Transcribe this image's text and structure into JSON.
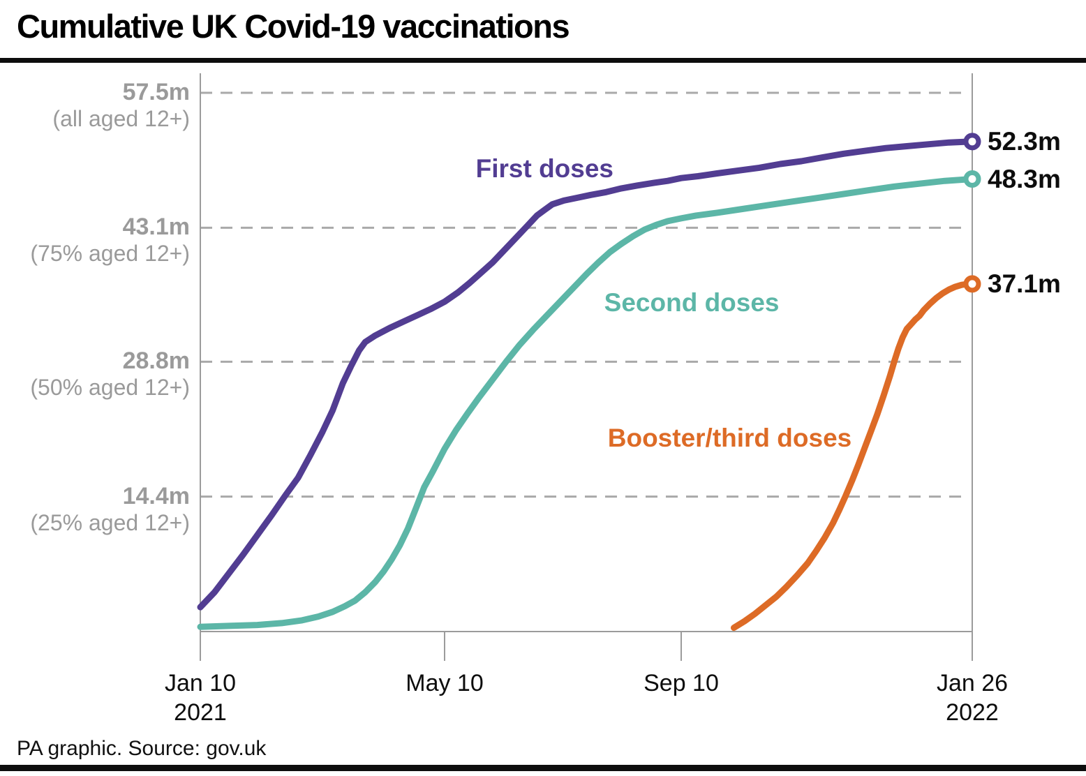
{
  "title": "Cumulative UK Covid-19 vaccinations",
  "footer": "PA graphic. Source: gov.uk",
  "chart_data": {
    "type": "line",
    "title": "Cumulative UK Covid-19 vaccinations",
    "x_unit": "days since 10 Jan 2021",
    "y_unit": "millions of doses",
    "ylim": [
      0,
      60
    ],
    "grid": "horizontal dashed gridlines at labelled y values",
    "legend_position": "labels beside each line",
    "x_ticks": [
      {
        "day": 0,
        "label": "Jan 10",
        "sublabel": "2021"
      },
      {
        "day": 120,
        "label": "May 10",
        "sublabel": ""
      },
      {
        "day": 243,
        "label": "Sep 10",
        "sublabel": ""
      },
      {
        "day": 381,
        "label": "Jan 26",
        "sublabel": "2022"
      }
    ],
    "y_ticks": [
      {
        "value": 57.5,
        "label": "57.5m",
        "sublabel": "(all aged 12+)"
      },
      {
        "value": 43.1,
        "label": "43.1m",
        "sublabel": "(75% aged 12+)"
      },
      {
        "value": 28.8,
        "label": "28.8m",
        "sublabel": "(50% aged 12+)"
      },
      {
        "value": 14.4,
        "label": "14.4m",
        "sublabel": "(25% aged 12+)"
      }
    ],
    "colors": {
      "first": "#523d92",
      "second": "#5cb6a7",
      "booster": "#dd6b26"
    },
    "series": [
      {
        "name": "First doses",
        "color": "#523d92",
        "end_label": "52.3m",
        "end_value": 52.3,
        "label_anchor": {
          "day": 172,
          "m": 49.2
        },
        "points": [
          [
            0,
            2.6
          ],
          [
            7,
            4.2
          ],
          [
            14,
            6.2
          ],
          [
            21,
            8.2
          ],
          [
            28,
            10.3
          ],
          [
            35,
            12.4
          ],
          [
            42,
            14.6
          ],
          [
            48,
            16.4
          ],
          [
            54,
            18.8
          ],
          [
            60,
            21.3
          ],
          [
            65,
            23.6
          ],
          [
            70,
            26.5
          ],
          [
            74,
            28.3
          ],
          [
            78,
            30.0
          ],
          [
            81,
            30.9
          ],
          [
            86,
            31.6
          ],
          [
            93,
            32.4
          ],
          [
            100,
            33.1
          ],
          [
            107,
            33.8
          ],
          [
            113,
            34.4
          ],
          [
            120,
            35.2
          ],
          [
            127,
            36.2
          ],
          [
            133,
            37.2
          ],
          [
            139,
            38.3
          ],
          [
            145,
            39.4
          ],
          [
            151,
            40.7
          ],
          [
            157,
            42.0
          ],
          [
            163,
            43.3
          ],
          [
            168,
            44.4
          ],
          [
            172,
            45.0
          ],
          [
            176,
            45.6
          ],
          [
            182,
            46.0
          ],
          [
            189,
            46.3
          ],
          [
            196,
            46.6
          ],
          [
            204,
            46.9
          ],
          [
            212,
            47.3
          ],
          [
            220,
            47.6
          ],
          [
            229,
            47.9
          ],
          [
            236,
            48.1
          ],
          [
            243,
            48.4
          ],
          [
            251,
            48.6
          ],
          [
            260,
            48.9
          ],
          [
            270,
            49.2
          ],
          [
            280,
            49.5
          ],
          [
            290,
            49.9
          ],
          [
            300,
            50.2
          ],
          [
            310,
            50.6
          ],
          [
            320,
            51.0
          ],
          [
            330,
            51.3
          ],
          [
            340,
            51.6
          ],
          [
            350,
            51.8
          ],
          [
            360,
            52.0
          ],
          [
            370,
            52.2
          ],
          [
            381,
            52.3
          ]
        ]
      },
      {
        "name": "Second doses",
        "color": "#5cb6a7",
        "end_label": "48.3m",
        "end_value": 48.3,
        "label_anchor": {
          "day": 248,
          "m": 34.9
        },
        "points": [
          [
            0,
            0.5
          ],
          [
            14,
            0.6
          ],
          [
            28,
            0.7
          ],
          [
            40,
            0.9
          ],
          [
            50,
            1.2
          ],
          [
            58,
            1.6
          ],
          [
            65,
            2.1
          ],
          [
            71,
            2.7
          ],
          [
            76,
            3.3
          ],
          [
            81,
            4.2
          ],
          [
            86,
            5.3
          ],
          [
            90,
            6.4
          ],
          [
            94,
            7.7
          ],
          [
            98,
            9.2
          ],
          [
            102,
            11.0
          ],
          [
            106,
            13.2
          ],
          [
            110,
            15.4
          ],
          [
            114,
            17.0
          ],
          [
            120,
            19.5
          ],
          [
            126,
            21.5
          ],
          [
            132,
            23.3
          ],
          [
            138,
            25.0
          ],
          [
            145,
            26.9
          ],
          [
            152,
            28.8
          ],
          [
            159,
            30.6
          ],
          [
            166,
            32.2
          ],
          [
            173,
            33.7
          ],
          [
            180,
            35.2
          ],
          [
            187,
            36.7
          ],
          [
            194,
            38.2
          ],
          [
            200,
            39.4
          ],
          [
            206,
            40.5
          ],
          [
            212,
            41.4
          ],
          [
            218,
            42.2
          ],
          [
            224,
            42.9
          ],
          [
            230,
            43.4
          ],
          [
            236,
            43.8
          ],
          [
            243,
            44.1
          ],
          [
            250,
            44.4
          ],
          [
            260,
            44.7
          ],
          [
            272,
            45.1
          ],
          [
            284,
            45.5
          ],
          [
            296,
            45.9
          ],
          [
            308,
            46.3
          ],
          [
            320,
            46.7
          ],
          [
            332,
            47.1
          ],
          [
            344,
            47.5
          ],
          [
            356,
            47.8
          ],
          [
            368,
            48.1
          ],
          [
            381,
            48.3
          ]
        ]
      },
      {
        "name": "Booster/third doses",
        "color": "#dd6b26",
        "end_label": "37.1m",
        "end_value": 37.1,
        "label_anchor": {
          "day": 266,
          "m": 20.5
        },
        "points": [
          [
            268,
            0.4
          ],
          [
            273,
            1.1
          ],
          [
            278,
            1.9
          ],
          [
            283,
            2.8
          ],
          [
            288,
            3.7
          ],
          [
            293,
            4.8
          ],
          [
            298,
            6.0
          ],
          [
            303,
            7.3
          ],
          [
            307,
            8.6
          ],
          [
            311,
            10.0
          ],
          [
            315,
            11.6
          ],
          [
            318,
            13.0
          ],
          [
            321,
            14.5
          ],
          [
            324,
            16.1
          ],
          [
            327,
            17.8
          ],
          [
            330,
            19.6
          ],
          [
            333,
            21.4
          ],
          [
            336,
            23.2
          ],
          [
            339,
            25.2
          ],
          [
            342,
            27.3
          ],
          [
            344,
            28.8
          ],
          [
            346,
            30.2
          ],
          [
            348,
            31.4
          ],
          [
            350,
            32.3
          ],
          [
            352,
            32.8
          ],
          [
            354,
            33.3
          ],
          [
            356,
            33.7
          ],
          [
            358,
            34.3
          ],
          [
            361,
            35.0
          ],
          [
            364,
            35.6
          ],
          [
            367,
            36.1
          ],
          [
            370,
            36.5
          ],
          [
            373,
            36.8
          ],
          [
            376,
            37.0
          ],
          [
            379,
            37.1
          ],
          [
            381,
            37.1
          ]
        ]
      }
    ]
  }
}
